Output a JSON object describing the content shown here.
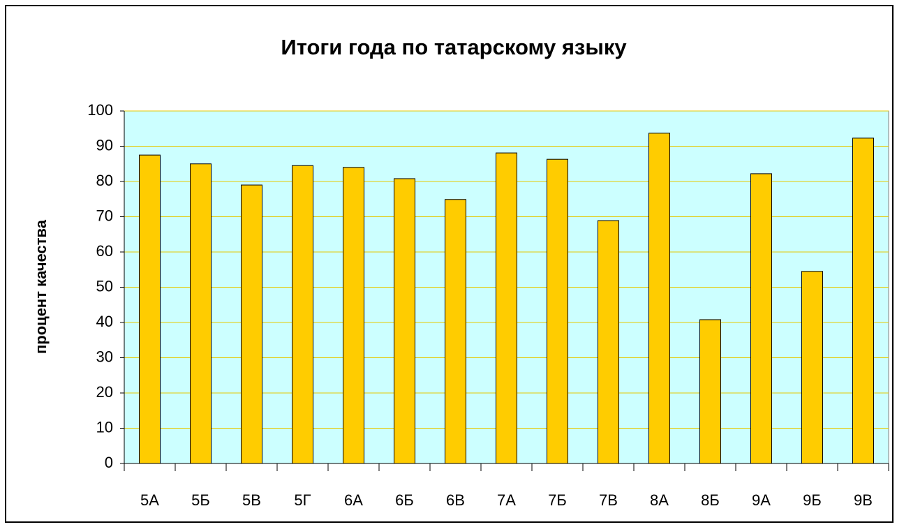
{
  "chart_data": {
    "type": "bar",
    "title": "Итоги года по татарскому языку",
    "y_label": "процент качества",
    "categories": [
      "5А",
      "5Б",
      "5В",
      "5Г",
      "6А",
      "6Б",
      "6В",
      "7А",
      "7Б",
      "7В",
      "8А",
      "8Б",
      "9А",
      "9Б",
      "9В"
    ],
    "values": [
      87.5,
      85,
      79,
      84.5,
      84,
      80.8,
      74.9,
      88.1,
      86.3,
      68.9,
      93.7,
      40.8,
      82.2,
      54.5,
      92.3
    ],
    "color": "#ffcc00",
    "plot_background": "#ccffff",
    "grid_color": "#e6c800",
    "ylim": [
      0,
      100
    ],
    "yticks": [
      0,
      10,
      20,
      30,
      40,
      50,
      60,
      70,
      80,
      90,
      100
    ],
    "grid": true
  }
}
